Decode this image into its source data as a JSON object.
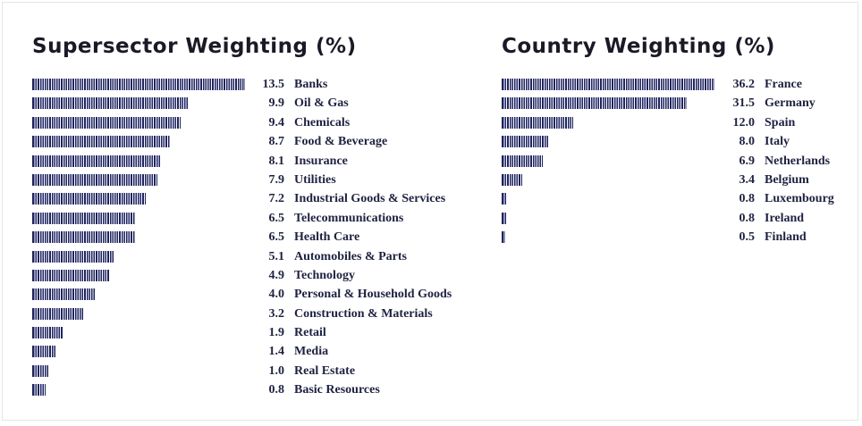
{
  "chart_data": [
    {
      "type": "bar",
      "orientation": "horizontal",
      "title": "Supersector Weighting (%)",
      "categories": [
        "Banks",
        "Oil & Gas",
        "Chemicals",
        "Food & Beverage",
        "Insurance",
        "Utilities",
        "Industrial Goods & Services",
        "Telecommunications",
        "Health Care",
        "Automobiles & Parts",
        "Technology",
        "Personal & Household Goods",
        "Construction & Materials",
        "Retail",
        "Media",
        "Real Estate",
        "Basic Resources"
      ],
      "values": [
        13.5,
        9.9,
        9.4,
        8.7,
        8.1,
        7.9,
        7.2,
        6.5,
        6.5,
        5.1,
        4.9,
        4.0,
        3.2,
        1.9,
        1.4,
        1.0,
        0.8
      ],
      "value_labels": [
        "13.5",
        "9.9",
        "9.4",
        "8.7",
        "8.1",
        "7.9",
        "7.2",
        "6.5",
        "6.5",
        "5.1",
        "4.9",
        "4.0",
        "3.2",
        "1.9",
        "1.4",
        "1.0",
        "0.8"
      ],
      "xlim": [
        0,
        13.5
      ],
      "bar_color": "#1f2460",
      "grid": false
    },
    {
      "type": "bar",
      "orientation": "horizontal",
      "title": "Country Weighting (%)",
      "categories": [
        "France",
        "Germany",
        "Spain",
        "Italy",
        "Netherlands",
        "Belgium",
        "Luxembourg",
        "Ireland",
        "Finland"
      ],
      "values": [
        36.2,
        31.5,
        12.0,
        8.0,
        6.9,
        3.4,
        0.8,
        0.8,
        0.5
      ],
      "value_labels": [
        "36.2",
        "31.5",
        "12.0",
        "8.0",
        "6.9",
        "3.4",
        "0.8",
        "0.8",
        "0.5"
      ],
      "xlim": [
        0,
        36.2
      ],
      "bar_color": "#1f2460",
      "grid": false
    }
  ]
}
